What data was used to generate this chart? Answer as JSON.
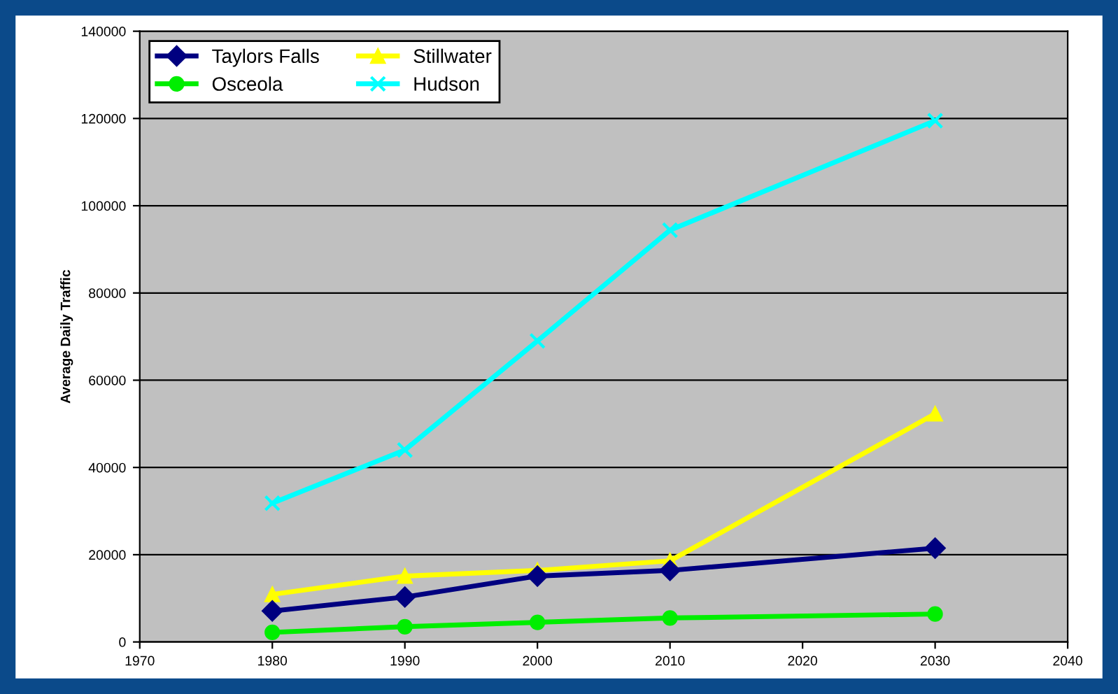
{
  "chart_data": {
    "type": "line",
    "ylabel": "Average Daily Traffic",
    "x": [
      1980,
      1990,
      2000,
      2010,
      2030
    ],
    "series": [
      {
        "name": "Taylors Falls",
        "color": "#000080",
        "marker": "diamond",
        "values": [
          7100,
          10300,
          15100,
          16400,
          21500
        ]
      },
      {
        "name": "Osceola",
        "color": "#00ee00",
        "marker": "circle",
        "values": [
          2200,
          3500,
          4500,
          5500,
          6400
        ]
      },
      {
        "name": "Stillwater",
        "color": "#ffff00",
        "marker": "triangle",
        "values": [
          10900,
          15100,
          16400,
          18600,
          52300
        ]
      },
      {
        "name": "Hudson",
        "color": "#00ffff",
        "marker": "cross",
        "values": [
          31800,
          44000,
          69000,
          94400,
          119500
        ]
      }
    ],
    "xlim": [
      1970,
      2040
    ],
    "xticks": [
      1970,
      1980,
      1990,
      2000,
      2010,
      2020,
      2030,
      2040
    ],
    "ylim": [
      0,
      140000
    ],
    "yticks": [
      0,
      20000,
      40000,
      60000,
      80000,
      100000,
      120000,
      140000
    ],
    "grid": "y",
    "legend": "top left",
    "line_style": "solid"
  }
}
